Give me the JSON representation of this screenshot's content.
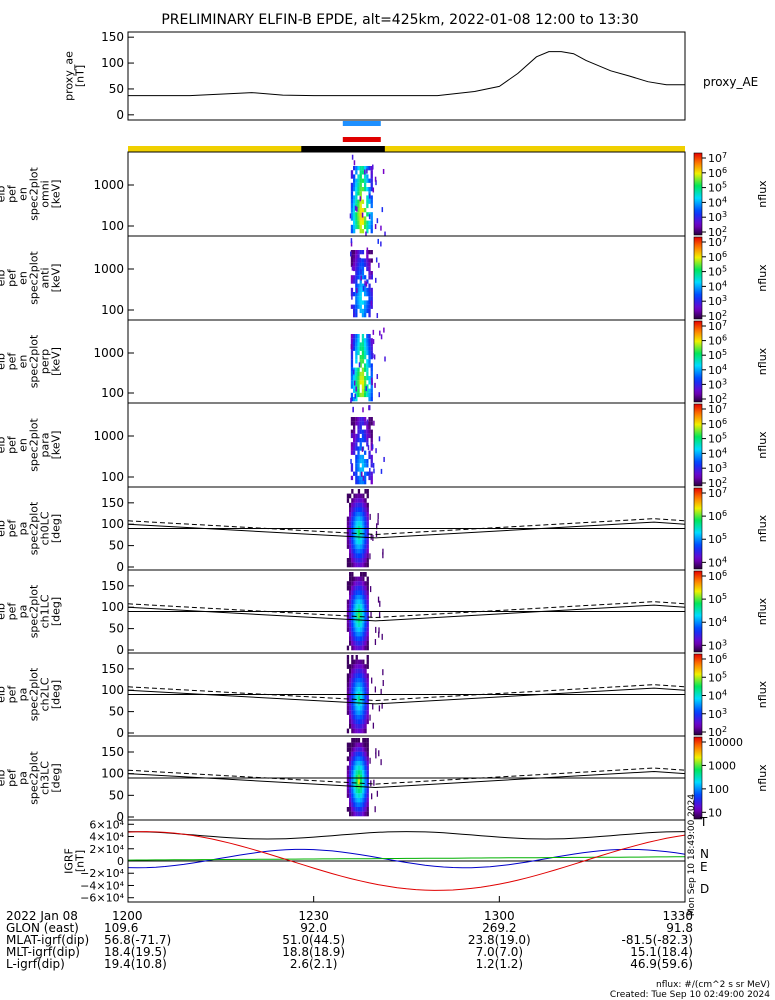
{
  "title": "PRELIMINARY ELFIN-B EPDE, alt=425km, 2022-01-08 12:00 to 13:30",
  "colors": {
    "sun_bar": "#f0d000",
    "shadow_bar": "#000000",
    "blue_seg": "#1e90ff",
    "red_seg": "#e00000",
    "igrf_N": "#0000c8",
    "igrf_E": "#00b000",
    "igrf_D": "#e00000"
  },
  "chart_data": [
    {
      "type": "line",
      "id": "proxy_ae",
      "ylabel": [
        "proxy_ae",
        "[nT]"
      ],
      "legend": "proxy_AE",
      "ylim": [
        -10,
        160
      ],
      "yticks": [
        "150",
        "100",
        "50",
        "0"
      ],
      "yticks_values": [
        150,
        100,
        50,
        0
      ],
      "x_minutes": [
        0,
        10,
        20,
        25,
        30,
        35,
        42,
        50,
        56,
        60,
        63,
        66,
        68,
        70,
        72,
        74,
        78,
        81,
        84,
        87,
        90
      ],
      "values": [
        37,
        37,
        43,
        38,
        37,
        37,
        37,
        37,
        45,
        55,
        80,
        112,
        122,
        122,
        118,
        105,
        85,
        75,
        64,
        58,
        58
      ]
    },
    {
      "type": "heatmap",
      "id": "spec_omni",
      "ylabel": [
        "elb",
        "pef",
        "en",
        "spec2plot",
        "omni",
        "[keV]"
      ],
      "yticks": [
        "1000",
        "100"
      ],
      "cbar_label": "nflux",
      "cbar_ticks": [
        "10^7",
        "10^6",
        "10^5",
        "10^4",
        "10^3",
        "10^2"
      ],
      "cbar_range": [
        2,
        7
      ],
      "peak_log_flux": 6.2
    },
    {
      "type": "heatmap",
      "id": "spec_anti",
      "ylabel": [
        "elb",
        "pef",
        "en",
        "spec2plot",
        "anti",
        "[keV]"
      ],
      "yticks": [
        "1000",
        "100"
      ],
      "cbar_label": "nflux",
      "cbar_ticks": [
        "10^7",
        "10^6",
        "10^5",
        "10^4",
        "10^3",
        "10^2"
      ],
      "cbar_range": [
        2,
        7
      ],
      "peak_log_flux": 4.5
    },
    {
      "type": "heatmap",
      "id": "spec_perp",
      "ylabel": [
        "elb",
        "pef",
        "en",
        "spec2plot",
        "perp",
        "[keV]"
      ],
      "yticks": [
        "1000",
        "100"
      ],
      "cbar_label": "nflux",
      "cbar_ticks": [
        "10^7",
        "10^6",
        "10^5",
        "10^4",
        "10^3",
        "10^2"
      ],
      "cbar_range": [
        2,
        7
      ],
      "peak_log_flux": 6.0
    },
    {
      "type": "heatmap",
      "id": "spec_para",
      "ylabel": [
        "elb",
        "pef",
        "en",
        "spec2plot",
        "para",
        "[keV]"
      ],
      "yticks": [
        "1000",
        "100"
      ],
      "cbar_label": "nflux",
      "cbar_ticks": [
        "10^7",
        "10^6",
        "10^5",
        "10^4",
        "10^3",
        "10^2"
      ],
      "cbar_range": [
        2,
        7
      ],
      "peak_log_flux": 4.3
    },
    {
      "type": "heatmap",
      "id": "pa_ch0",
      "ylabel": [
        "elb",
        "pef",
        "pa",
        "spec2plot",
        "ch0LC",
        "[deg]"
      ],
      "yticks": [
        "150",
        "100",
        "50",
        "0"
      ],
      "cbar_label": "nflux",
      "cbar_ticks": [
        "10^7",
        "10^6",
        "10^5",
        "10^4"
      ],
      "cbar_range": [
        3.5,
        7
      ],
      "peak_log_flux": 5.6
    },
    {
      "type": "heatmap",
      "id": "pa_ch1",
      "ylabel": [
        "elb",
        "pef",
        "pa",
        "spec2plot",
        "ch1LC",
        "[deg]"
      ],
      "yticks": [
        "150",
        "100",
        "50",
        "0"
      ],
      "cbar_label": "nflux",
      "cbar_ticks": [
        "10^6",
        "10^5",
        "10^4",
        "10^3"
      ],
      "cbar_range": [
        3,
        6.6
      ],
      "peak_log_flux": 5.3
    },
    {
      "type": "heatmap",
      "id": "pa_ch2",
      "ylabel": [
        "elb",
        "pef",
        "pa",
        "spec2plot",
        "ch2LC",
        "[deg]"
      ],
      "yticks": [
        "150",
        "100",
        "50",
        "0"
      ],
      "cbar_label": "nflux",
      "cbar_ticks": [
        "10^6",
        "10^5",
        "10^4",
        "10^3",
        "10^2"
      ],
      "cbar_range": [
        2,
        6.6
      ],
      "peak_log_flux": 4.6
    },
    {
      "type": "heatmap",
      "id": "pa_ch3",
      "ylabel": [
        "elb",
        "pef",
        "pa",
        "spec2plot",
        "ch3LC",
        "[deg]"
      ],
      "yticks": [
        "150",
        "100",
        "50",
        "0"
      ],
      "cbar_label": "nflux",
      "cbar_ticks": [
        "10000",
        "1000",
        "100",
        "10"
      ],
      "cbar_range": [
        1,
        4.3
      ],
      "peak_log_flux": 3.4
    },
    {
      "type": "line",
      "id": "igrf",
      "ylabel": [
        "IGRF",
        "[nT]"
      ],
      "yticks": [
        "6×10⁴",
        "4×10⁴",
        "2×10⁴",
        "0",
        "−2×10⁴",
        "−4×10⁴",
        "−6×10⁴"
      ],
      "yticks_values": [
        60000,
        40000,
        20000,
        0,
        -20000,
        -40000,
        -60000
      ],
      "ylim": [
        -67000,
        67000
      ],
      "series": [
        {
          "name": "T",
          "color": "#000000"
        },
        {
          "name": "N",
          "color": "#0000c8"
        },
        {
          "name": "E",
          "color": "#00b000"
        },
        {
          "name": "D",
          "color": "#e00000"
        }
      ]
    }
  ],
  "pa_overlay": {
    "solid_left": 100,
    "solid_min": 68,
    "solid_right": 100,
    "dashed_left": 108,
    "dashed_min": 76,
    "dashed_right": 108
  },
  "time_axis": {
    "start_minutes": 0,
    "end_minutes": 90,
    "burst_minute": 36,
    "burst_width_minutes": 3.5
  },
  "footer": {
    "rows": [
      {
        "label": "2022 Jan 08",
        "values": [
          "1200",
          "1230",
          "1300",
          "1330"
        ]
      },
      {
        "label": "GLON (east)",
        "values": [
          "109.6",
          "92.0",
          "269.2",
          "91.8"
        ]
      },
      {
        "label": "MLAT-igrf(dip)",
        "values": [
          "56.8(-71.7)",
          "51.0(44.5)",
          "23.8(19.0)",
          "-81.5(-82.3)"
        ]
      },
      {
        "label": "MLT-igrf(dip)",
        "values": [
          "18.4(19.5)",
          "18.8(18.9)",
          "7.0(7.0)",
          "15.1(18.4)"
        ]
      },
      {
        "label": "L-igrf(dip)",
        "values": [
          "19.4(10.8)",
          "2.6(2.1)",
          "1.2(1.2)",
          "46.9(59.6)"
        ]
      }
    ],
    "units_note": "nflux: #/(cm^2 s sr MeV)",
    "created": "Created: Tue Sep 10 02:49:00 2024",
    "side_stamp": "Mon Sep 10 18:49:00 2024"
  }
}
